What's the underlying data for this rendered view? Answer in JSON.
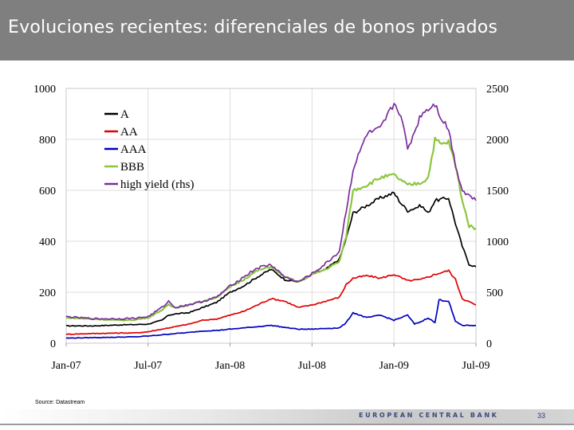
{
  "slide": {
    "title": "Evoluciones recientes: diferenciales de bonos privados",
    "source": "Source: Datastream",
    "footer_bank": "EUROPEAN CENTRAL BANK",
    "page_number": "33"
  },
  "chart_data": {
    "type": "line",
    "title": "",
    "xlabel": "",
    "ylabel": "",
    "x_ticks": [
      "Jan-07",
      "Jul-07",
      "Jan-08",
      "Jul-08",
      "Jan-09",
      "Jul-09"
    ],
    "x_range": [
      0,
      30
    ],
    "ylim": [
      0,
      1000
    ],
    "ylim_rhs": [
      0,
      2500
    ],
    "y_ticks": [
      "0",
      "200",
      "400",
      "600",
      "800",
      "1000"
    ],
    "y_ticks_rhs": [
      "0",
      "500",
      "1000",
      "1500",
      "2000",
      "2500"
    ],
    "grid": true,
    "legend_position": "top-left",
    "x_unit": "months since Jan-07",
    "series": [
      {
        "name": "A",
        "color": "#000000",
        "axis": "left",
        "x": [
          0,
          2,
          4,
          5,
          6,
          7,
          7.5,
          8,
          9,
          10,
          11,
          12,
          13,
          14,
          15,
          16,
          17,
          18,
          19,
          20,
          20.5,
          21,
          22,
          23,
          24,
          24.5,
          25,
          26,
          26.5,
          27,
          28,
          28.5,
          29,
          29.5,
          30
        ],
        "values": [
          68,
          68,
          72,
          73,
          75,
          90,
          110,
          115,
          120,
          140,
          160,
          200,
          225,
          260,
          290,
          250,
          240,
          270,
          290,
          330,
          410,
          510,
          540,
          570,
          590,
          550,
          520,
          540,
          510,
          560,
          570,
          470,
          380,
          310,
          300
        ]
      },
      {
        "name": "AA",
        "color": "#e00000",
        "axis": "left",
        "x": [
          0,
          2,
          4,
          5,
          6,
          7,
          8,
          9,
          10,
          11,
          12,
          13,
          14,
          15,
          16,
          17,
          18,
          19,
          20,
          20.5,
          21,
          22,
          23,
          24,
          25,
          26,
          27,
          28,
          28.5,
          29,
          30
        ],
        "values": [
          35,
          38,
          40,
          40,
          45,
          55,
          65,
          75,
          90,
          95,
          110,
          125,
          150,
          175,
          165,
          140,
          150,
          165,
          180,
          230,
          255,
          265,
          255,
          270,
          245,
          250,
          270,
          285,
          250,
          175,
          150
        ]
      },
      {
        "name": "AAA",
        "color": "#0000c0",
        "axis": "left",
        "x": [
          0,
          2,
          4,
          5,
          6,
          7,
          8,
          9,
          10,
          11,
          12,
          13,
          14,
          15,
          16,
          17,
          18,
          19,
          20,
          20.5,
          21,
          22,
          23,
          24,
          25,
          25.5,
          26,
          26.5,
          27,
          27.3,
          28,
          28.5,
          29,
          30
        ],
        "values": [
          20,
          22,
          24,
          25,
          28,
          33,
          38,
          42,
          48,
          50,
          55,
          60,
          65,
          70,
          62,
          55,
          55,
          58,
          60,
          80,
          120,
          100,
          110,
          90,
          110,
          75,
          85,
          100,
          80,
          170,
          165,
          85,
          70,
          70
        ]
      },
      {
        "name": "BBB",
        "color": "#8cc63f",
        "axis": "left",
        "x": [
          0,
          2,
          4,
          5,
          6,
          7,
          7.5,
          8,
          9,
          10,
          11,
          12,
          13,
          14,
          15,
          16,
          17,
          18,
          19,
          20,
          20.5,
          21,
          22,
          23,
          24,
          24.5,
          25,
          26,
          26.5,
          27,
          27.5,
          28,
          28.5,
          29,
          29.5,
          30
        ],
        "values": [
          100,
          95,
          90,
          92,
          100,
          130,
          150,
          140,
          150,
          165,
          180,
          220,
          250,
          285,
          300,
          260,
          240,
          270,
          290,
          320,
          420,
          600,
          620,
          650,
          660,
          640,
          620,
          630,
          650,
          800,
          780,
          790,
          700,
          560,
          460,
          450
        ]
      },
      {
        "name": "high yield (rhs)",
        "color": "#7a2e9e",
        "axis": "right",
        "x": [
          0,
          2,
          4,
          5,
          6,
          7,
          7.5,
          8,
          9,
          10,
          11,
          12,
          13,
          14,
          15,
          16,
          17,
          18,
          19,
          20,
          20.5,
          21,
          22,
          23,
          24,
          24.5,
          25,
          26,
          27,
          27.5,
          28,
          28.5,
          29,
          29.5,
          30
        ],
        "values": [
          260,
          240,
          240,
          245,
          260,
          350,
          410,
          350,
          380,
          410,
          450,
          560,
          650,
          740,
          770,
          650,
          600,
          680,
          780,
          900,
          1300,
          1700,
          2050,
          2100,
          2350,
          2250,
          1900,
          2250,
          2350,
          2200,
          2100,
          1750,
          1500,
          1450,
          1400
        ]
      }
    ]
  }
}
